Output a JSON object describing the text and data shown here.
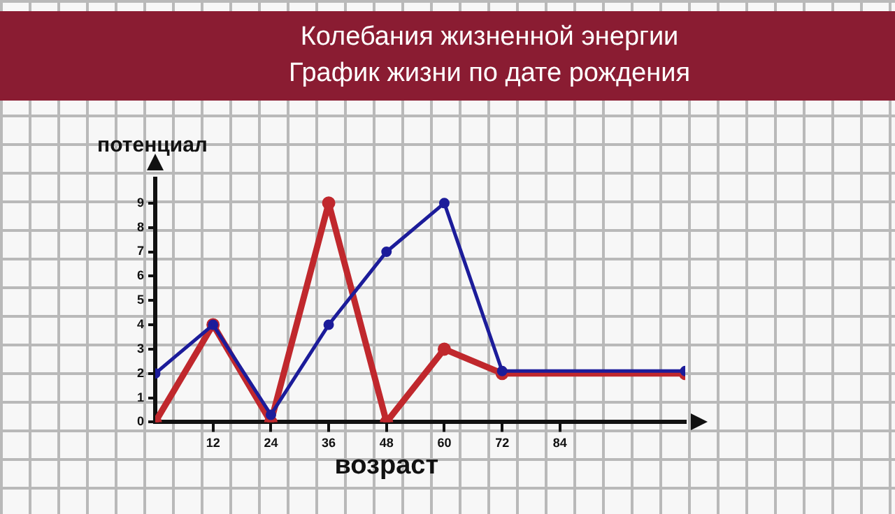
{
  "chart_data": {
    "type": "line",
    "title": "Колебания жизненной энергии",
    "subtitle": "График жизни по дате рождения",
    "xlabel": "возраст",
    "ylabel": "потенциал",
    "x": [
      0,
      12,
      24,
      36,
      48,
      60,
      72,
      110
    ],
    "series": [
      {
        "color": "#c0282d",
        "values": [
          0,
          4,
          0,
          9,
          0,
          3,
          2,
          2
        ]
      },
      {
        "color": "#1c1c9a",
        "values": [
          2,
          4,
          0.3,
          4,
          7,
          9,
          2.1,
          2.1
        ]
      }
    ],
    "xlim": [
      0,
      110
    ],
    "xticks": [
      12,
      24,
      36,
      48,
      60,
      72,
      84
    ],
    "ylim": [
      0,
      10
    ],
    "yticks": [
      0,
      1,
      2,
      3,
      4,
      5,
      6,
      7,
      8,
      9
    ],
    "grid": false,
    "marker": "circle",
    "line_style": "solid"
  }
}
